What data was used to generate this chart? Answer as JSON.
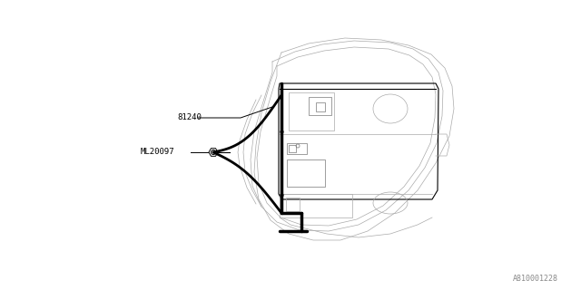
{
  "background_color": "#ffffff",
  "line_color": "#000000",
  "gray_color": "#aaaaaa",
  "dark_gray": "#777777",
  "label_81240": "81240",
  "label_ML20097": "ML20097",
  "part_number": "A810001228",
  "figsize": [
    6.4,
    3.2
  ],
  "dpi": 100
}
